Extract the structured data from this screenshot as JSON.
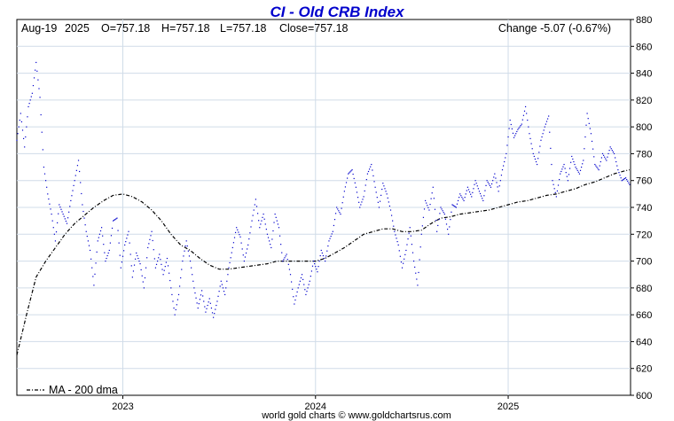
{
  "chart_data": {
    "type": "scatter",
    "title": "CI - Old CRB Index",
    "header": {
      "date": "Aug-19",
      "year": "2025",
      "open": "O=757.18",
      "high": "H=757.18",
      "low": "L=757.18",
      "close": "Close=757.18",
      "change": "Change -5.07 (-0.67%)"
    },
    "footer": "world gold charts © www.goldchartsrus.com",
    "ylim": [
      600,
      880
    ],
    "yticks": [
      600,
      620,
      640,
      660,
      680,
      700,
      720,
      740,
      760,
      780,
      800,
      820,
      840,
      860,
      880
    ],
    "xlim": [
      2022.45,
      2025.635
    ],
    "xticks": [
      {
        "label": "2023",
        "x": 2023.0
      },
      {
        "label": "2024",
        "x": 2024.0
      },
      {
        "label": "2025",
        "x": 2025.0
      }
    ],
    "grid": true,
    "legend": {
      "label": "MA - 200 dma",
      "placement": "bottom-left"
    },
    "colors": {
      "price": "#0000cc",
      "ma": "#000000",
      "grid": "#d0dce8",
      "title": "#0000cc"
    },
    "series": [
      {
        "name": "price",
        "style": "dotted",
        "points": [
          [
            2022.45,
            790
          ],
          [
            2022.47,
            810
          ],
          [
            2022.49,
            785
          ],
          [
            2022.51,
            815
          ],
          [
            2022.53,
            825
          ],
          [
            2022.55,
            848
          ],
          [
            2022.57,
            822
          ],
          [
            2022.59,
            770
          ],
          [
            2022.61,
            750
          ],
          [
            2022.63,
            735
          ],
          [
            2022.65,
            715
          ],
          [
            2022.67,
            742
          ],
          [
            2022.69,
            735
          ],
          [
            2022.71,
            728
          ],
          [
            2022.73,
            745
          ],
          [
            2022.75,
            760
          ],
          [
            2022.77,
            775
          ],
          [
            2022.79,
            742
          ],
          [
            2022.81,
            722
          ],
          [
            2022.83,
            708
          ],
          [
            2022.85,
            682
          ],
          [
            2022.87,
            715
          ],
          [
            2022.89,
            725
          ],
          [
            2022.91,
            700
          ],
          [
            2022.93,
            708
          ],
          [
            2022.95,
            730
          ],
          [
            2022.97,
            732
          ],
          [
            2022.99,
            695
          ],
          [
            2023.01,
            712
          ],
          [
            2023.03,
            722
          ],
          [
            2023.05,
            688
          ],
          [
            2023.07,
            706
          ],
          [
            2023.09,
            698
          ],
          [
            2023.11,
            680
          ],
          [
            2023.13,
            710
          ],
          [
            2023.15,
            722
          ],
          [
            2023.17,
            695
          ],
          [
            2023.19,
            705
          ],
          [
            2023.21,
            690
          ],
          [
            2023.23,
            702
          ],
          [
            2023.25,
            680
          ],
          [
            2023.27,
            660
          ],
          [
            2023.29,
            675
          ],
          [
            2023.31,
            700
          ],
          [
            2023.33,
            715
          ],
          [
            2023.35,
            700
          ],
          [
            2023.37,
            680
          ],
          [
            2023.39,
            665
          ],
          [
            2023.41,
            678
          ],
          [
            2023.43,
            662
          ],
          [
            2023.45,
            672
          ],
          [
            2023.47,
            658
          ],
          [
            2023.49,
            670
          ],
          [
            2023.51,
            685
          ],
          [
            2023.53,
            675
          ],
          [
            2023.55,
            695
          ],
          [
            2023.57,
            710
          ],
          [
            2023.59,
            725
          ],
          [
            2023.61,
            718
          ],
          [
            2023.63,
            700
          ],
          [
            2023.65,
            712
          ],
          [
            2023.67,
            730
          ],
          [
            2023.69,
            746
          ],
          [
            2023.71,
            725
          ],
          [
            2023.73,
            735
          ],
          [
            2023.75,
            720
          ],
          [
            2023.77,
            710
          ],
          [
            2023.79,
            735
          ],
          [
            2023.81,
            725
          ],
          [
            2023.83,
            700
          ],
          [
            2023.85,
            705
          ],
          [
            2023.87,
            690
          ],
          [
            2023.89,
            668
          ],
          [
            2023.91,
            680
          ],
          [
            2023.93,
            690
          ],
          [
            2023.95,
            675
          ],
          [
            2023.97,
            685
          ],
          [
            2023.99,
            700
          ],
          [
            2024.01,
            692
          ],
          [
            2024.03,
            708
          ],
          [
            2024.05,
            700
          ],
          [
            2024.07,
            715
          ],
          [
            2024.09,
            722
          ],
          [
            2024.11,
            740
          ],
          [
            2024.13,
            735
          ],
          [
            2024.15,
            752
          ],
          [
            2024.17,
            765
          ],
          [
            2024.19,
            768
          ],
          [
            2024.21,
            755
          ],
          [
            2024.23,
            740
          ],
          [
            2024.25,
            748
          ],
          [
            2024.27,
            765
          ],
          [
            2024.29,
            772
          ],
          [
            2024.31,
            755
          ],
          [
            2024.33,
            740
          ],
          [
            2024.35,
            758
          ],
          [
            2024.37,
            750
          ],
          [
            2024.39,
            738
          ],
          [
            2024.41,
            722
          ],
          [
            2024.43,
            712
          ],
          [
            2024.45,
            695
          ],
          [
            2024.47,
            708
          ],
          [
            2024.49,
            725
          ],
          [
            2024.51,
            700
          ],
          [
            2024.53,
            682
          ],
          [
            2024.55,
            720
          ],
          [
            2024.57,
            745
          ],
          [
            2024.59,
            738
          ],
          [
            2024.61,
            755
          ],
          [
            2024.63,
            722
          ],
          [
            2024.65,
            740
          ],
          [
            2024.67,
            735
          ],
          [
            2024.69,
            720
          ],
          [
            2024.71,
            742
          ],
          [
            2024.73,
            740
          ],
          [
            2024.75,
            750
          ],
          [
            2024.77,
            745
          ],
          [
            2024.79,
            755
          ],
          [
            2024.81,
            748
          ],
          [
            2024.83,
            760
          ],
          [
            2024.85,
            752
          ],
          [
            2024.87,
            745
          ],
          [
            2024.89,
            760
          ],
          [
            2024.91,
            755
          ],
          [
            2024.93,
            765
          ],
          [
            2024.95,
            752
          ],
          [
            2024.97,
            768
          ],
          [
            2024.99,
            780
          ],
          [
            2025.01,
            805
          ],
          [
            2025.03,
            792
          ],
          [
            2025.05,
            798
          ],
          [
            2025.07,
            802
          ],
          [
            2025.09,
            815
          ],
          [
            2025.11,
            795
          ],
          [
            2025.13,
            780
          ],
          [
            2025.15,
            772
          ],
          [
            2025.17,
            790
          ],
          [
            2025.19,
            800
          ],
          [
            2025.21,
            808
          ],
          [
            2025.23,
            760
          ],
          [
            2025.25,
            748
          ],
          [
            2025.27,
            765
          ],
          [
            2025.29,
            772
          ],
          [
            2025.31,
            760
          ],
          [
            2025.33,
            778
          ],
          [
            2025.35,
            770
          ],
          [
            2025.37,
            765
          ],
          [
            2025.39,
            775
          ],
          [
            2025.41,
            810
          ],
          [
            2025.43,
            795
          ],
          [
            2025.45,
            772
          ],
          [
            2025.47,
            768
          ],
          [
            2025.49,
            780
          ],
          [
            2025.51,
            775
          ],
          [
            2025.53,
            785
          ],
          [
            2025.55,
            780
          ],
          [
            2025.57,
            768
          ],
          [
            2025.59,
            760
          ],
          [
            2025.61,
            762
          ],
          [
            2025.63,
            757
          ]
        ]
      },
      {
        "name": "MA - 200 dma",
        "style": "dash-dot",
        "points": [
          [
            2022.45,
            630
          ],
          [
            2022.5,
            660
          ],
          [
            2022.55,
            688
          ],
          [
            2022.6,
            700
          ],
          [
            2022.65,
            710
          ],
          [
            2022.7,
            720
          ],
          [
            2022.75,
            728
          ],
          [
            2022.8,
            734
          ],
          [
            2022.85,
            740
          ],
          [
            2022.9,
            745
          ],
          [
            2022.95,
            749
          ],
          [
            2023.0,
            750
          ],
          [
            2023.05,
            748
          ],
          [
            2023.1,
            744
          ],
          [
            2023.15,
            738
          ],
          [
            2023.2,
            730
          ],
          [
            2023.25,
            720
          ],
          [
            2023.3,
            712
          ],
          [
            2023.35,
            708
          ],
          [
            2023.4,
            702
          ],
          [
            2023.45,
            697
          ],
          [
            2023.5,
            694
          ],
          [
            2023.55,
            694
          ],
          [
            2023.6,
            695
          ],
          [
            2023.65,
            696
          ],
          [
            2023.7,
            697
          ],
          [
            2023.75,
            698
          ],
          [
            2023.8,
            700
          ],
          [
            2023.85,
            700
          ],
          [
            2023.9,
            700
          ],
          [
            2023.95,
            700
          ],
          [
            2024.0,
            700
          ],
          [
            2024.05,
            702
          ],
          [
            2024.1,
            706
          ],
          [
            2024.15,
            710
          ],
          [
            2024.2,
            715
          ],
          [
            2024.25,
            720
          ],
          [
            2024.3,
            722
          ],
          [
            2024.35,
            724
          ],
          [
            2024.4,
            724
          ],
          [
            2024.45,
            722
          ],
          [
            2024.5,
            722
          ],
          [
            2024.55,
            723
          ],
          [
            2024.6,
            728
          ],
          [
            2024.65,
            732
          ],
          [
            2024.7,
            733
          ],
          [
            2024.75,
            735
          ],
          [
            2024.8,
            736
          ],
          [
            2024.85,
            737
          ],
          [
            2024.9,
            738
          ],
          [
            2024.95,
            740
          ],
          [
            2025.0,
            742
          ],
          [
            2025.05,
            744
          ],
          [
            2025.1,
            745
          ],
          [
            2025.15,
            747
          ],
          [
            2025.2,
            749
          ],
          [
            2025.25,
            750
          ],
          [
            2025.3,
            752
          ],
          [
            2025.35,
            754
          ],
          [
            2025.4,
            757
          ],
          [
            2025.45,
            759
          ],
          [
            2025.5,
            762
          ],
          [
            2025.55,
            765
          ],
          [
            2025.6,
            767
          ],
          [
            2025.63,
            768
          ]
        ]
      }
    ]
  }
}
